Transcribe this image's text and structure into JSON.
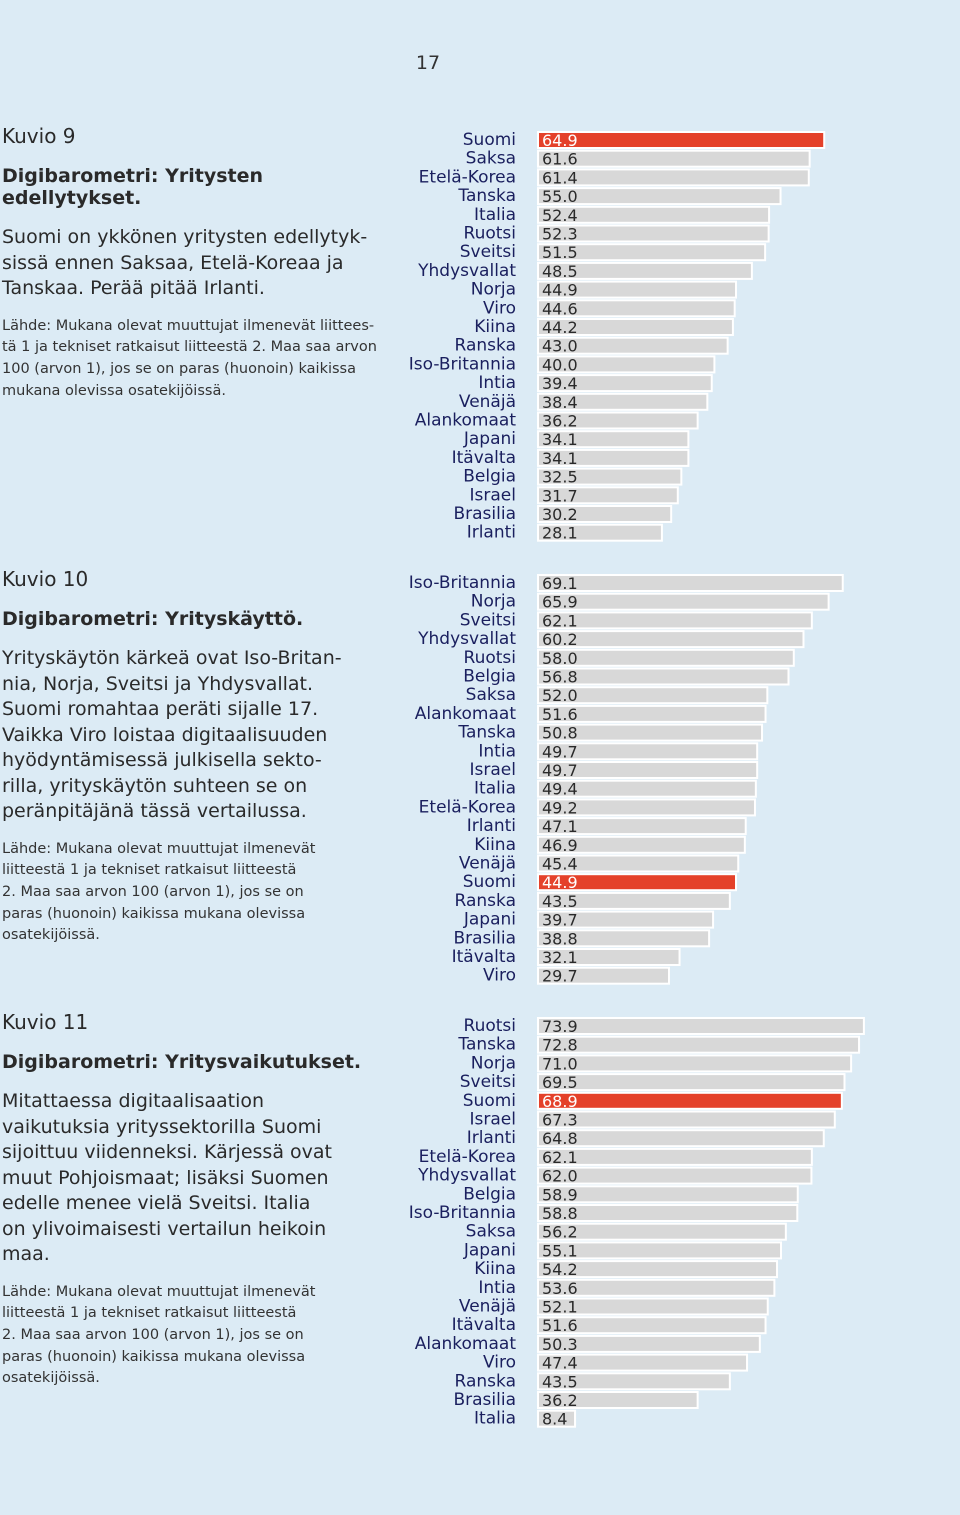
{
  "page": {
    "number": "17"
  },
  "figures": [
    {
      "kuvio": "Kuvio 9",
      "title": "Digibarometri: Yritysten edellytykset.",
      "description": "Suomi on ykkönen yritysten edellytyk-\nsissä ennen Saksaa, Etelä-Koreaa ja\nTanskaa. Perää pitää Irlanti.",
      "source": "Lähde: Mukana olevat muuttujat ilmenevät liittees-\ntä 1 ja tekniset ratkaisut liitteestä 2. Maa saa arvon\n100 (arvon 1), jos se on paras (huonoin) kaikissa\nmukana olevissa osatekijöissä."
    },
    {
      "kuvio": "Kuvio 10",
      "title": "Digibarometri: Yrityskäyttö.",
      "description": "Yrityskäytön kärkeä ovat Iso-Britan-\nnia, Norja, Sveitsi ja Yhdysvallat.\nSuomi romahtaa peräti sijalle 17.\nVaikka Viro loistaa digitaalisuuden\nhyödyntämisessä julkisella sekto-\nrilla, yrityskäytön suhteen se on\nperänpitäjänä tässä vertailussa.",
      "source": "Lähde: Mukana olevat muuttujat ilmenevät\nliitteestä 1 ja tekniset ratkaisut liitteestä\n2. Maa saa arvon 100 (arvon 1), jos se on\nparas (huonoin) kaikissa mukana olevissa\nosatekijöissä."
    },
    {
      "kuvio": "Kuvio 11",
      "title": "Digibarometri: Yritysvaikutukset.",
      "description": "Mitattaessa digitaalisaation\nvaikutuksia yrityssektorilla Suomi\nsijoittuu viidenneksi. Kärjessä ovat\nmuut Pohjoismaat; lisäksi Suomen\nedelle menee vielä Sveitsi. Italia\non ylivoimaisesti vertailun heikoin\nmaa.",
      "source": "Lähde: Mukana olevat muuttujat ilmenevät\nliitteestä 1 ja tekniset ratkaisut liitteestä\n2. Maa saa arvon 100 (arvon 1), jos se on\nparas (huonoin) kaikissa mukana olevissa\nosatekijöissä."
    }
  ],
  "colors": {
    "highlight": "#e4412a",
    "bar": "#d8d8d8",
    "background": "#dcebf5"
  },
  "chart_data": [
    {
      "type": "bar",
      "orientation": "horizontal",
      "highlight": "Suomi",
      "categories": [
        "Suomi",
        "Saksa",
        "Etelä-Korea",
        "Tanska",
        "Italia",
        "Ruotsi",
        "Sveitsi",
        "Yhdysvallat",
        "Norja",
        "Viro",
        "Kiina",
        "Ranska",
        "Iso-Britannia",
        "Intia",
        "Venäjä",
        "Alankomaat",
        "Japani",
        "Itävalta",
        "Belgia",
        "Israel",
        "Brasilia",
        "Irlanti"
      ],
      "values": [
        64.9,
        61.6,
        61.4,
        55.0,
        52.4,
        52.3,
        51.5,
        48.5,
        44.9,
        44.6,
        44.2,
        43.0,
        40.0,
        39.4,
        38.4,
        36.2,
        34.1,
        34.1,
        32.5,
        31.7,
        30.2,
        28.1
      ],
      "labels": [
        "64.9",
        "61.6",
        "61.4",
        "55.0",
        "52.4",
        "52.3",
        "51.5",
        "48.5",
        "44.9",
        "44.6",
        "44.2",
        "43.0",
        "40.0",
        "39.4",
        "38.4",
        "36.2",
        "34.1",
        "34.1",
        "32.5",
        "31.7",
        "30.2",
        "28.1"
      ]
    },
    {
      "type": "bar",
      "orientation": "horizontal",
      "highlight": "Suomi",
      "categories": [
        "Iso-Britannia",
        "Norja",
        "Sveitsi",
        "Yhdysvallat",
        "Ruotsi",
        "Belgia",
        "Saksa",
        "Alankomaat",
        "Tanska",
        "Intia",
        "Israel",
        "Italia",
        "Etelä-Korea",
        "Irlanti",
        "Kiina",
        "Venäjä",
        "Suomi",
        "Ranska",
        "Japani",
        "Brasilia",
        "Itävalta",
        "Viro"
      ],
      "values": [
        69.1,
        65.9,
        62.1,
        60.2,
        58.0,
        56.8,
        52.0,
        51.6,
        50.8,
        49.7,
        49.7,
        49.4,
        49.2,
        47.1,
        46.9,
        45.4,
        44.9,
        43.5,
        39.7,
        38.8,
        32.1,
        29.7
      ],
      "labels": [
        "69.1",
        "65.9",
        "62.1",
        "60.2",
        "58.0",
        "56.8",
        "52.0",
        "51.6",
        "50.8",
        "49.7",
        "49.7",
        "49.4",
        "49.2",
        "47.1",
        "46.9",
        "45.4",
        "44.9",
        "43.5",
        "39.7",
        "38.8",
        "32.1",
        "29.7"
      ]
    },
    {
      "type": "bar",
      "orientation": "horizontal",
      "highlight": "Suomi",
      "categories": [
        "Ruotsi",
        "Tanska",
        "Norja",
        "Sveitsi",
        "Suomi",
        "Israel",
        "Irlanti",
        "Etelä-Korea",
        "Yhdysvallat",
        "Belgia",
        "Iso-Britannia",
        "Saksa",
        "Japani",
        "Kiina",
        "Intia",
        "Venäjä",
        "Itävalta",
        "Alankomaat",
        "Viro",
        "Ranska",
        "Brasilia",
        "Italia"
      ],
      "values": [
        73.9,
        72.8,
        71.0,
        69.5,
        68.9,
        67.3,
        64.8,
        62.1,
        62.0,
        58.9,
        58.8,
        56.2,
        55.1,
        54.2,
        53.6,
        52.1,
        51.6,
        50.3,
        47.4,
        43.5,
        36.2,
        8.4
      ],
      "labels": [
        "73.9",
        "72.8",
        "71.0",
        "69.5",
        "68.9",
        "67.3",
        "64.8",
        "62.1",
        "62.0",
        "58.9",
        "58.8",
        "56.2",
        "55.1",
        "54.2",
        "53.6",
        "52.1",
        "51.6",
        "50.3",
        "47.4",
        "43.5",
        "36.2",
        "8.4"
      ]
    }
  ]
}
